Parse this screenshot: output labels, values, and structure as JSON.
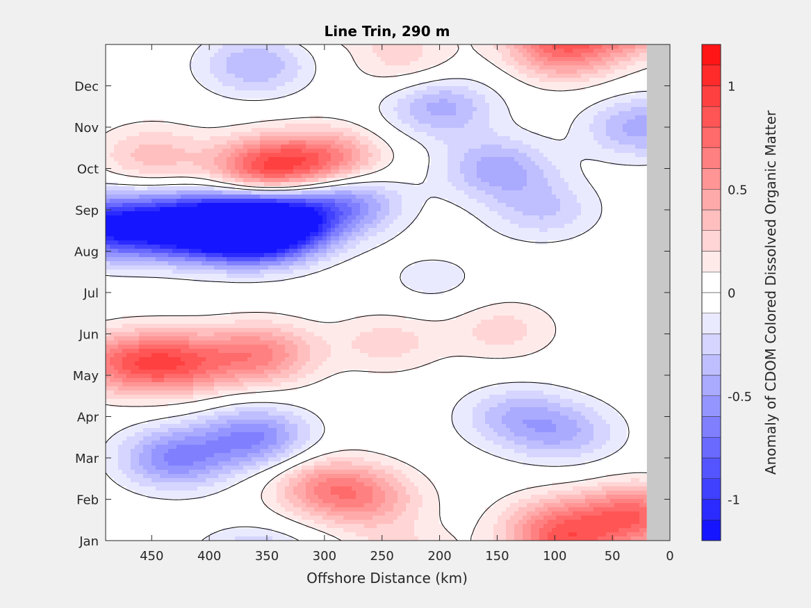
{
  "chart_data": {
    "type": "heatmap",
    "subtype": "filled-contour",
    "title": "Line Trin, 290 m",
    "xlabel": "Offshore Distance (km)",
    "ylabel": "",
    "xlim": [
      0,
      490
    ],
    "x_reversed": true,
    "x_ticks": [
      450,
      400,
      350,
      300,
      250,
      200,
      150,
      100,
      50,
      0
    ],
    "y_ticks": [
      "Jan",
      "Feb",
      "Mar",
      "Apr",
      "May",
      "Jun",
      "Jul",
      "Aug",
      "Sep",
      "Oct",
      "Nov",
      "Dec"
    ],
    "no_data_region_km": [
      0,
      20
    ],
    "no_data_color": "#c8c8c8",
    "colorbar": {
      "label": "Anomaly of CDOM Colored Dissolved Organic Matter",
      "range": [
        -1.2,
        1.2
      ],
      "ticks": [
        -1,
        -0.5,
        0,
        0.5,
        1
      ],
      "tick_labels": [
        "-1",
        "-0.5",
        "0",
        "0.5",
        "1"
      ],
      "level_step": 0.1,
      "negative_color": "#0000ff",
      "positive_color": "#ff0000",
      "zero_color": "#ffffff"
    },
    "features": [
      {
        "x": 490,
        "month": 7.6,
        "value": -1.0
      },
      {
        "x": 385,
        "month": 7.6,
        "value": -1.0
      },
      {
        "x": 355,
        "month": 7.5,
        "value": -1.05
      },
      {
        "x": 430,
        "month": 7.6,
        "value": -0.95
      },
      {
        "x": 330,
        "month": 7.8,
        "value": -0.7
      },
      {
        "x": 280,
        "month": 8.2,
        "value": -0.55
      },
      {
        "x": 350,
        "month": 9.0,
        "value": 0.85
      },
      {
        "x": 295,
        "month": 9.2,
        "value": 0.6
      },
      {
        "x": 450,
        "month": 9.3,
        "value": 0.35
      },
      {
        "x": 475,
        "month": 4.3,
        "value": 0.6
      },
      {
        "x": 425,
        "month": 4.3,
        "value": 0.65
      },
      {
        "x": 355,
        "month": 4.5,
        "value": 0.6
      },
      {
        "x": 245,
        "month": 4.8,
        "value": 0.25
      },
      {
        "x": 200,
        "month": 10.5,
        "value": -0.45
      },
      {
        "x": 150,
        "month": 9.0,
        "value": -0.45
      },
      {
        "x": 205,
        "month": 6.3,
        "value": -0.15
      },
      {
        "x": 110,
        "month": 8.0,
        "value": -0.3
      },
      {
        "x": 25,
        "month": 10.0,
        "value": -0.45
      },
      {
        "x": 360,
        "month": 11.5,
        "value": -0.4
      },
      {
        "x": 90,
        "month": 11.8,
        "value": 0.5
      },
      {
        "x": 230,
        "month": 11.6,
        "value": 0.25
      },
      {
        "x": 430,
        "month": 2.0,
        "value": -0.6
      },
      {
        "x": 360,
        "month": 2.5,
        "value": -0.6
      },
      {
        "x": 135,
        "month": 3.0,
        "value": -0.35
      },
      {
        "x": 90,
        "month": 2.6,
        "value": -0.35
      },
      {
        "x": 300,
        "month": 1.3,
        "value": 0.5
      },
      {
        "x": 260,
        "month": 1.0,
        "value": 0.4
      },
      {
        "x": 30,
        "month": 0.6,
        "value": 0.75
      },
      {
        "x": 100,
        "month": 0.4,
        "value": 0.45
      },
      {
        "x": 145,
        "month": 5.1,
        "value": 0.25
      }
    ]
  }
}
